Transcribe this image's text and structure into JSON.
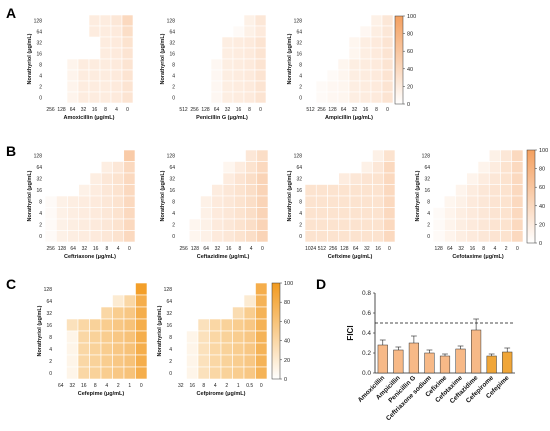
{
  "figure": {
    "panel_labels": [
      "A",
      "B",
      "C",
      "D"
    ]
  },
  "chart_data": [
    {
      "type": "heatmap",
      "panel": "A",
      "xlabel": "Amoxicillin (μg/mL)",
      "ylabel": "Norathyriol (μg/mL)",
      "x_ticks": [
        "256",
        "128",
        "64",
        "32",
        "16",
        "8",
        "4",
        "0"
      ],
      "y_ticks": [
        "128",
        "64",
        "32",
        "16",
        "8",
        "4",
        "2",
        "0"
      ],
      "values": [
        [
          null,
          null,
          null,
          null,
          20,
          20,
          25,
          40
        ],
        [
          null,
          null,
          null,
          null,
          20,
          20,
          22,
          35
        ],
        [
          null,
          null,
          null,
          null,
          null,
          20,
          22,
          30
        ],
        [
          null,
          null,
          null,
          null,
          null,
          20,
          22,
          28
        ],
        [
          null,
          null,
          12,
          20,
          20,
          20,
          22,
          28
        ],
        [
          null,
          null,
          12,
          20,
          20,
          20,
          22,
          28
        ],
        [
          null,
          null,
          12,
          20,
          20,
          20,
          22,
          28
        ],
        [
          null,
          null,
          12,
          20,
          20,
          20,
          22,
          28
        ]
      ]
    },
    {
      "type": "heatmap",
      "panel": "A",
      "xlabel": "Penicillin G (μg/mL)",
      "ylabel": "Norathyriol (μg/mL)",
      "x_ticks": [
        "512",
        "256",
        "128",
        "64",
        "32",
        "16",
        "8",
        "0"
      ],
      "y_ticks": [
        "128",
        "64",
        "32",
        "16",
        "8",
        "4",
        "2",
        "0"
      ],
      "values": [
        [
          null,
          null,
          null,
          null,
          null,
          null,
          15,
          25
        ],
        [
          null,
          null,
          null,
          null,
          null,
          5,
          15,
          22
        ],
        [
          null,
          null,
          null,
          null,
          18,
          20,
          22,
          28
        ],
        [
          null,
          null,
          null,
          null,
          18,
          20,
          22,
          28
        ],
        [
          null,
          null,
          null,
          8,
          18,
          20,
          22,
          28
        ],
        [
          null,
          null,
          null,
          8,
          18,
          20,
          22,
          28
        ],
        [
          null,
          null,
          null,
          8,
          18,
          20,
          22,
          28
        ],
        [
          null,
          null,
          null,
          8,
          18,
          20,
          22,
          28
        ]
      ]
    },
    {
      "type": "heatmap",
      "panel": "A",
      "xlabel": "Ampicillin (μg/mL)",
      "ylabel": "Norathyriol (μg/mL)",
      "x_ticks": [
        "512",
        "256",
        "128",
        "64",
        "32",
        "16",
        "8",
        "0"
      ],
      "y_ticks": [
        "128",
        "64",
        "32",
        "16",
        "8",
        "4",
        "2",
        "0"
      ],
      "values": [
        [
          null,
          null,
          null,
          null,
          null,
          null,
          15,
          25
        ],
        [
          null,
          null,
          null,
          null,
          null,
          8,
          18,
          25
        ],
        [
          null,
          null,
          null,
          null,
          10,
          18,
          22,
          28
        ],
        [
          null,
          null,
          null,
          null,
          10,
          18,
          22,
          28
        ],
        [
          null,
          null,
          null,
          10,
          18,
          20,
          22,
          28
        ],
        [
          null,
          null,
          5,
          10,
          18,
          20,
          22,
          28
        ],
        [
          null,
          5,
          8,
          10,
          18,
          20,
          22,
          28
        ],
        [
          null,
          5,
          8,
          10,
          18,
          20,
          22,
          28
        ]
      ]
    },
    {
      "type": "heatmap",
      "panel": "B",
      "xlabel": "Ceftriaxone (μg/mL)",
      "ylabel": "Norathyriol (μg/mL)",
      "x_ticks": [
        "256",
        "128",
        "64",
        "32",
        "16",
        "8",
        "4",
        "0"
      ],
      "y_ticks": [
        "128",
        "64",
        "32",
        "16",
        "8",
        "4",
        "2",
        "0"
      ],
      "values": [
        [
          null,
          null,
          null,
          null,
          null,
          null,
          null,
          55
        ],
        [
          null,
          null,
          null,
          null,
          null,
          18,
          25,
          40
        ],
        [
          null,
          null,
          null,
          null,
          18,
          25,
          30,
          40
        ],
        [
          null,
          null,
          null,
          15,
          20,
          25,
          30,
          40
        ],
        [
          5,
          15,
          18,
          20,
          22,
          25,
          30,
          40
        ],
        [
          5,
          15,
          18,
          20,
          22,
          25,
          30,
          40
        ],
        [
          5,
          15,
          18,
          20,
          22,
          25,
          30,
          40
        ],
        [
          5,
          15,
          18,
          20,
          22,
          25,
          30,
          40
        ]
      ]
    },
    {
      "type": "heatmap",
      "panel": "B",
      "xlabel": "Ceftazidime (μg/mL)",
      "ylabel": "Norathyriol (μg/mL)",
      "x_ticks": [
        "256",
        "128",
        "64",
        "32",
        "16",
        "8",
        "4",
        "0"
      ],
      "y_ticks": [
        "128",
        "64",
        "32",
        "16",
        "8",
        "4",
        "2",
        "0"
      ],
      "values": [
        [
          null,
          null,
          null,
          null,
          null,
          null,
          25,
          35
        ],
        [
          null,
          null,
          null,
          null,
          10,
          20,
          30,
          40
        ],
        [
          null,
          null,
          null,
          null,
          20,
          28,
          35,
          45
        ],
        [
          null,
          null,
          null,
          20,
          25,
          30,
          35,
          45
        ],
        [
          null,
          null,
          15,
          22,
          25,
          30,
          35,
          45
        ],
        [
          null,
          null,
          15,
          22,
          25,
          30,
          35,
          45
        ],
        [
          null,
          10,
          15,
          22,
          25,
          30,
          35,
          45
        ],
        [
          null,
          10,
          15,
          22,
          25,
          30,
          35,
          45
        ]
      ]
    },
    {
      "type": "heatmap",
      "panel": "B",
      "xlabel": "Cefixime (μg/mL)",
      "ylabel": "Norathyriol (μg/mL)",
      "x_ticks": [
        "1024",
        "512",
        "256",
        "128",
        "64",
        "32",
        "16",
        "0"
      ],
      "y_ticks": [
        "128",
        "64",
        "32",
        "16",
        "8",
        "4",
        "2",
        "0"
      ],
      "values": [
        [
          null,
          null,
          null,
          null,
          null,
          null,
          15,
          30
        ],
        [
          null,
          null,
          null,
          null,
          null,
          15,
          25,
          40
        ],
        [
          null,
          null,
          null,
          20,
          25,
          28,
          30,
          40
        ],
        [
          30,
          30,
          30,
          30,
          30,
          30,
          30,
          40
        ],
        [
          30,
          30,
          30,
          30,
          30,
          30,
          30,
          40
        ],
        [
          30,
          30,
          30,
          30,
          30,
          30,
          30,
          40
        ],
        [
          30,
          30,
          30,
          30,
          30,
          30,
          30,
          40
        ],
        [
          30,
          30,
          30,
          30,
          30,
          30,
          30,
          40
        ]
      ]
    },
    {
      "type": "heatmap",
      "panel": "B",
      "xlabel": "Cefotaxime (μg/mL)",
      "ylabel": "Norathyriol (μg/mL)",
      "x_ticks": [
        "128",
        "64",
        "32",
        "16",
        "8",
        "4",
        "2",
        "0"
      ],
      "y_ticks": [
        "128",
        "64",
        "32",
        "16",
        "8",
        "4",
        "2",
        "0"
      ],
      "values": [
        [
          null,
          null,
          null,
          null,
          null,
          15,
          25,
          40
        ],
        [
          null,
          null,
          null,
          null,
          12,
          20,
          30,
          40
        ],
        [
          null,
          null,
          null,
          12,
          20,
          25,
          30,
          40
        ],
        [
          null,
          null,
          12,
          20,
          25,
          28,
          30,
          40
        ],
        [
          null,
          10,
          15,
          22,
          25,
          28,
          30,
          40
        ],
        [
          5,
          12,
          18,
          22,
          25,
          28,
          30,
          40
        ],
        [
          5,
          12,
          18,
          22,
          25,
          28,
          30,
          40
        ],
        [
          5,
          12,
          18,
          22,
          25,
          28,
          30,
          40
        ]
      ]
    },
    {
      "type": "heatmap",
      "panel": "C",
      "xlabel": "Cefepime (μg/mL)",
      "ylabel": "Norathyriol (μg/mL)",
      "x_ticks": [
        "64",
        "32",
        "16",
        "8",
        "4",
        "2",
        "1",
        "0"
      ],
      "y_ticks": [
        "128",
        "64",
        "32",
        "16",
        "8",
        "4",
        "2",
        "0"
      ],
      "values": [
        [
          null,
          null,
          null,
          null,
          null,
          null,
          null,
          95
        ],
        [
          null,
          null,
          null,
          null,
          null,
          20,
          40,
          80
        ],
        [
          null,
          null,
          null,
          null,
          40,
          50,
          55,
          80
        ],
        [
          null,
          30,
          40,
          45,
          50,
          55,
          60,
          80
        ],
        [
          null,
          10,
          40,
          45,
          50,
          55,
          60,
          80
        ],
        [
          null,
          10,
          40,
          45,
          50,
          55,
          60,
          80
        ],
        [
          null,
          10,
          40,
          45,
          50,
          55,
          60,
          80
        ],
        [
          null,
          10,
          40,
          45,
          50,
          55,
          60,
          80
        ]
      ]
    },
    {
      "type": "heatmap",
      "panel": "C",
      "xlabel": "Cefpirome (μg/mL)",
      "ylabel": "Norathyriol (μg/mL)",
      "x_ticks": [
        "32",
        "16",
        "8",
        "4",
        "2",
        "1",
        "0.5",
        "0"
      ],
      "y_ticks": [
        "128",
        "64",
        "32",
        "16",
        "8",
        "4",
        "2",
        "0"
      ],
      "values": [
        [
          null,
          null,
          null,
          null,
          null,
          null,
          null,
          80
        ],
        [
          null,
          null,
          null,
          null,
          null,
          null,
          20,
          75
        ],
        [
          null,
          null,
          null,
          null,
          null,
          35,
          50,
          75
        ],
        [
          null,
          null,
          30,
          40,
          45,
          50,
          55,
          75
        ],
        [
          null,
          10,
          30,
          40,
          45,
          50,
          55,
          75
        ],
        [
          null,
          10,
          30,
          40,
          45,
          50,
          55,
          75
        ],
        [
          null,
          10,
          30,
          40,
          45,
          50,
          55,
          75
        ],
        [
          null,
          10,
          30,
          40,
          45,
          50,
          55,
          75
        ]
      ]
    },
    {
      "type": "bar",
      "panel": "D",
      "categories": [
        "Amoxicillin",
        "Ampicillin",
        "Penicillin G",
        "Ceftriaxone sodium",
        "Cefixime",
        "Cefotaxime",
        "Ceftazidime",
        "Cefepirome",
        "Cefepime"
      ],
      "values": [
        0.28,
        0.23,
        0.3,
        0.2,
        0.17,
        0.24,
        0.43,
        0.17,
        0.21
      ],
      "errors": [
        0.05,
        0.03,
        0.07,
        0.03,
        0.02,
        0.03,
        0.11,
        0.02,
        0.04
      ],
      "colors": [
        "#f7b987",
        "#f7b987",
        "#f7b987",
        "#f7b987",
        "#f7b987",
        "#f7b987",
        "#f7b987",
        "#f0a638",
        "#f0a638"
      ],
      "ylabel": "FICI",
      "ylim": [
        0,
        0.8
      ],
      "y_ticks": [
        "0.0",
        "0.2",
        "0.4",
        "0.6",
        "0.8"
      ],
      "reference_line": 0.5
    }
  ],
  "colorbars": [
    {
      "ticks": [
        "100",
        "80",
        "60",
        "40",
        "20",
        "0"
      ],
      "colors": [
        "#ffffff",
        "#f4a060"
      ]
    },
    {
      "ticks": [
        "100",
        "80",
        "60",
        "40",
        "20",
        "0"
      ],
      "colors": [
        "#ffffff",
        "#f4a060"
      ]
    },
    {
      "ticks": [
        "100",
        "80",
        "60",
        "40",
        "20",
        "0"
      ],
      "colors": [
        "#ffffff",
        "#f29a1f"
      ]
    }
  ]
}
